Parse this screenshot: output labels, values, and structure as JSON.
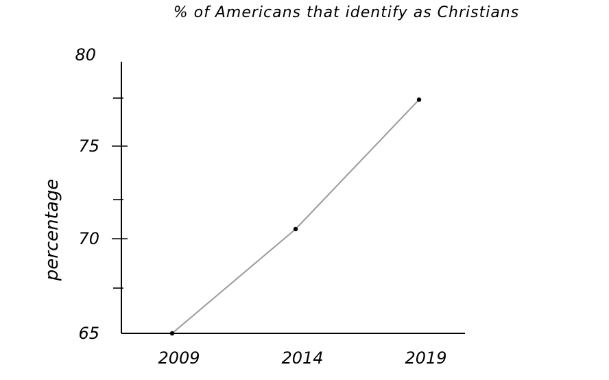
{
  "chart_data": {
    "type": "line",
    "title": "% of Americans that identify as Christians",
    "ylabel": "percentage",
    "xlabel": "",
    "x": [
      "2009",
      "2014",
      "2019"
    ],
    "series": [
      {
        "values": [
          65,
          70.4,
          77.1
        ]
      }
    ],
    "ylim": [
      65,
      80
    ],
    "y_tick_labels": [
      "65",
      "70",
      "75",
      "80"
    ],
    "grid": false,
    "legend": "none",
    "colors": {
      "line": "#9a9a9a",
      "points": "#000000",
      "axes": "#000000"
    }
  }
}
